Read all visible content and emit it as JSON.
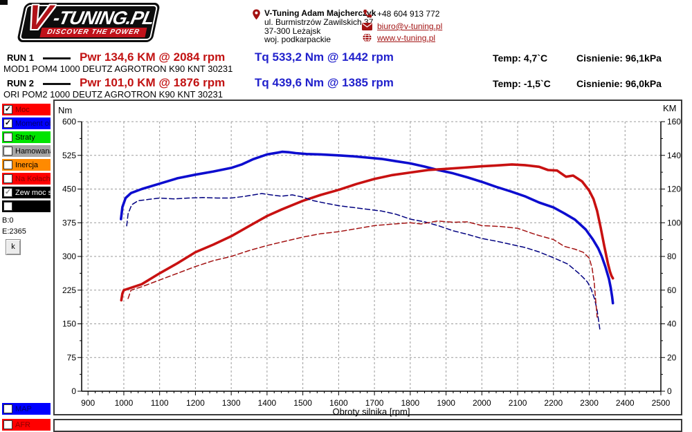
{
  "header": {
    "logo": {
      "brand_v": "V",
      "brand_rest": "-TUNING.PL",
      "tagline": "DISCOVER THE POWER"
    },
    "company": {
      "name": "V-Tuning Adam Majcherczyk",
      "address1": "ul. Burmistrzów Zawilskich 37",
      "address2": "37-300 Leżajsk",
      "address3": "woj. podkarpackie"
    },
    "contact": {
      "phone": "+48 604 913 772",
      "email": "biuro@v-tuning.pl",
      "website": "www.v-tuning.pl"
    }
  },
  "runs": [
    {
      "label": "RUN 1",
      "power": "Pwr  134,6 KM @ 2084 rpm",
      "torque": "Tq 533,2 Nm @ 1442 rpm",
      "temp": "Temp: 4,7`C",
      "pressure": "Cisnienie: 96,1kPa",
      "description": "MOD1 POM4 1000 DEUTZ AGROTRON K90 KNT 30231"
    },
    {
      "label": "RUN 2",
      "power": "Pwr  101,0 KM @ 1876 rpm",
      "torque": "Tq 439,6 Nm @ 1385 rpm",
      "temp": "Temp: -1,5`C",
      "pressure": "Cisnienie: 96,0kPa",
      "description": "ORI POM2 1000 DEUTZ AGROTRON K90 KNT 30231"
    }
  ],
  "sidebar": {
    "channels": [
      {
        "label": "Moc",
        "bg": "#ff0000",
        "fg": "#7a0000",
        "checked": true,
        "disabled": false
      },
      {
        "label": "Moment obr",
        "bg": "#0000ff",
        "fg": "#00006a",
        "checked": true,
        "disabled": false
      },
      {
        "label": "Straty",
        "bg": "#00e400",
        "fg": "#000000",
        "checked": false,
        "disabled": false
      },
      {
        "label": "Hamowana",
        "bg": "#a6a6a6",
        "fg": "#000000",
        "checked": false,
        "disabled": false
      },
      {
        "label": "Inercja",
        "bg": "#ff8a00",
        "fg": "#000000",
        "checked": false,
        "disabled": false
      },
      {
        "label": "Na Kołach",
        "bg": "#ff0000",
        "fg": "#8b0000",
        "checked": false,
        "disabled": false
      },
      {
        "label": "Zew moc st",
        "bg": "#000000",
        "fg": "#ffffff",
        "checked": true,
        "disabled": true
      },
      {
        "label": "",
        "bg": "#000000",
        "fg": "#ffffff",
        "checked": false,
        "disabled": false
      }
    ],
    "info_b": "B:0",
    "info_e": "E:2365",
    "k_button": "k",
    "bottom_channels": [
      {
        "label": "MAP",
        "bg": "#0000ff",
        "fg": "#00006a",
        "checked": false,
        "disabled": false
      },
      {
        "label": "AFR",
        "bg": "#ff0000",
        "fg": "#8b0000",
        "checked": false,
        "disabled": false
      }
    ]
  },
  "chart_data": {
    "type": "line",
    "x_axis": {
      "label": "Obroty silnika [rpm]",
      "min": 900,
      "max": 2500,
      "major_step": 100,
      "minor_step": 20
    },
    "y_left_axis": {
      "label": "Nm",
      "min": 0,
      "max": 600,
      "major_step": 75,
      "minor_step": 37.5
    },
    "y_right_axis": {
      "label": "KM",
      "min": 0,
      "max": 160,
      "major_step": 20,
      "minor_step": 10
    },
    "grid": {
      "on": true,
      "color": "#9a9a9a"
    },
    "peaks": [
      {
        "run": "RUN 1",
        "power_km": 134.6,
        "power_rpm": 2084,
        "torque_nm": 533.2,
        "torque_rpm": 1442
      },
      {
        "run": "RUN 2",
        "power_km": 101.0,
        "power_rpm": 1876,
        "torque_nm": 439.6,
        "torque_rpm": 1385
      }
    ],
    "series": [
      {
        "name": "RUN 1 MOD torque",
        "axis": "left",
        "color": "#0d0dcf",
        "width": 3.6,
        "dash": null,
        "points": [
          [
            992,
            383
          ],
          [
            996,
            410
          ],
          [
            1005,
            430
          ],
          [
            1020,
            441
          ],
          [
            1050,
            450
          ],
          [
            1100,
            462
          ],
          [
            1150,
            474
          ],
          [
            1200,
            482
          ],
          [
            1250,
            489
          ],
          [
            1300,
            497
          ],
          [
            1330,
            505
          ],
          [
            1360,
            516
          ],
          [
            1400,
            527
          ],
          [
            1430,
            531
          ],
          [
            1442,
            533
          ],
          [
            1460,
            532
          ],
          [
            1480,
            530
          ],
          [
            1510,
            528
          ],
          [
            1550,
            527
          ],
          [
            1600,
            525
          ],
          [
            1640,
            523
          ],
          [
            1680,
            520
          ],
          [
            1720,
            517
          ],
          [
            1760,
            512
          ],
          [
            1800,
            507
          ],
          [
            1840,
            500
          ],
          [
            1880,
            492
          ],
          [
            1920,
            485
          ],
          [
            1960,
            476
          ],
          [
            2000,
            466
          ],
          [
            2040,
            455
          ],
          [
            2080,
            445
          ],
          [
            2120,
            434
          ],
          [
            2160,
            420
          ],
          [
            2200,
            409
          ],
          [
            2230,
            396
          ],
          [
            2260,
            382
          ],
          [
            2290,
            360
          ],
          [
            2310,
            338
          ],
          [
            2325,
            318
          ],
          [
            2335,
            300
          ],
          [
            2345,
            277
          ],
          [
            2355,
            250
          ],
          [
            2360,
            230
          ],
          [
            2364,
            210
          ],
          [
            2366,
            196
          ]
        ]
      },
      {
        "name": "RUN 1 MOD power",
        "axis": "right",
        "color": "#c81111",
        "width": 3.6,
        "dash": null,
        "points": [
          [
            993,
            54
          ],
          [
            996,
            58
          ],
          [
            1000,
            60
          ],
          [
            1050,
            63.5
          ],
          [
            1100,
            70
          ],
          [
            1150,
            76
          ],
          [
            1200,
            82.5
          ],
          [
            1250,
            87
          ],
          [
            1300,
            92
          ],
          [
            1350,
            98
          ],
          [
            1400,
            104
          ],
          [
            1442,
            108
          ],
          [
            1500,
            113
          ],
          [
            1550,
            116.5
          ],
          [
            1600,
            119.5
          ],
          [
            1650,
            123
          ],
          [
            1700,
            126
          ],
          [
            1750,
            128.3
          ],
          [
            1800,
            129.8
          ],
          [
            1850,
            131.3
          ],
          [
            1900,
            132
          ],
          [
            1950,
            132.7
          ],
          [
            2000,
            133.5
          ],
          [
            2040,
            134
          ],
          [
            2084,
            134.6
          ],
          [
            2120,
            134.2
          ],
          [
            2160,
            133.2
          ],
          [
            2185,
            131.3
          ],
          [
            2210,
            131
          ],
          [
            2235,
            127.3
          ],
          [
            2255,
            128
          ],
          [
            2280,
            124.5
          ],
          [
            2300,
            119
          ],
          [
            2312,
            114
          ],
          [
            2322,
            107
          ],
          [
            2332,
            97
          ],
          [
            2342,
            86
          ],
          [
            2352,
            76
          ],
          [
            2358,
            71
          ],
          [
            2362,
            68.5
          ],
          [
            2366,
            67
          ]
        ]
      },
      {
        "name": "RUN 2 ORI torque",
        "axis": "left",
        "color": "#000080",
        "width": 1.5,
        "dash": "7 4",
        "points": [
          [
            1008,
            368
          ],
          [
            1012,
            395
          ],
          [
            1022,
            415
          ],
          [
            1040,
            424
          ],
          [
            1070,
            427
          ],
          [
            1100,
            430
          ],
          [
            1140,
            428
          ],
          [
            1180,
            430
          ],
          [
            1220,
            431
          ],
          [
            1260,
            430
          ],
          [
            1300,
            430
          ],
          [
            1340,
            434
          ],
          [
            1385,
            440
          ],
          [
            1410,
            437
          ],
          [
            1440,
            434
          ],
          [
            1470,
            437
          ],
          [
            1500,
            432
          ],
          [
            1530,
            424
          ],
          [
            1560,
            419
          ],
          [
            1600,
            413
          ],
          [
            1640,
            409
          ],
          [
            1680,
            405
          ],
          [
            1720,
            401
          ],
          [
            1760,
            394
          ],
          [
            1800,
            383
          ],
          [
            1840,
            377
          ],
          [
            1880,
            368
          ],
          [
            1920,
            357
          ],
          [
            1960,
            349
          ],
          [
            2000,
            340
          ],
          [
            2040,
            334
          ],
          [
            2080,
            327
          ],
          [
            2120,
            320
          ],
          [
            2160,
            310
          ],
          [
            2200,
            297
          ],
          [
            2240,
            283
          ],
          [
            2270,
            263
          ],
          [
            2283,
            253
          ],
          [
            2295,
            243
          ],
          [
            2305,
            228
          ],
          [
            2315,
            205
          ],
          [
            2322,
            180
          ],
          [
            2330,
            136
          ]
        ]
      },
      {
        "name": "RUN 2 ORI power",
        "axis": "right",
        "color": "#a31212",
        "width": 1.5,
        "dash": "7 4",
        "points": [
          [
            1012,
            55
          ],
          [
            1020,
            60
          ],
          [
            1050,
            62
          ],
          [
            1100,
            66
          ],
          [
            1150,
            70
          ],
          [
            1200,
            74
          ],
          [
            1250,
            77.5
          ],
          [
            1300,
            80
          ],
          [
            1350,
            83.5
          ],
          [
            1400,
            86.5
          ],
          [
            1450,
            89
          ],
          [
            1500,
            91.5
          ],
          [
            1550,
            93.5
          ],
          [
            1600,
            94.7
          ],
          [
            1650,
            96.5
          ],
          [
            1700,
            98.3
          ],
          [
            1750,
            99.2
          ],
          [
            1800,
            100
          ],
          [
            1830,
            99.3
          ],
          [
            1876,
            101
          ],
          [
            1920,
            100.3
          ],
          [
            1960,
            100.5
          ],
          [
            2000,
            98.3
          ],
          [
            2050,
            97.8
          ],
          [
            2100,
            96.7
          ],
          [
            2150,
            93
          ],
          [
            2200,
            90
          ],
          [
            2230,
            86
          ],
          [
            2260,
            84.3
          ],
          [
            2283,
            82.5
          ],
          [
            2300,
            79
          ],
          [
            2308,
            73
          ],
          [
            2314,
            64
          ],
          [
            2318,
            54
          ],
          [
            2322,
            44
          ]
        ]
      }
    ]
  }
}
